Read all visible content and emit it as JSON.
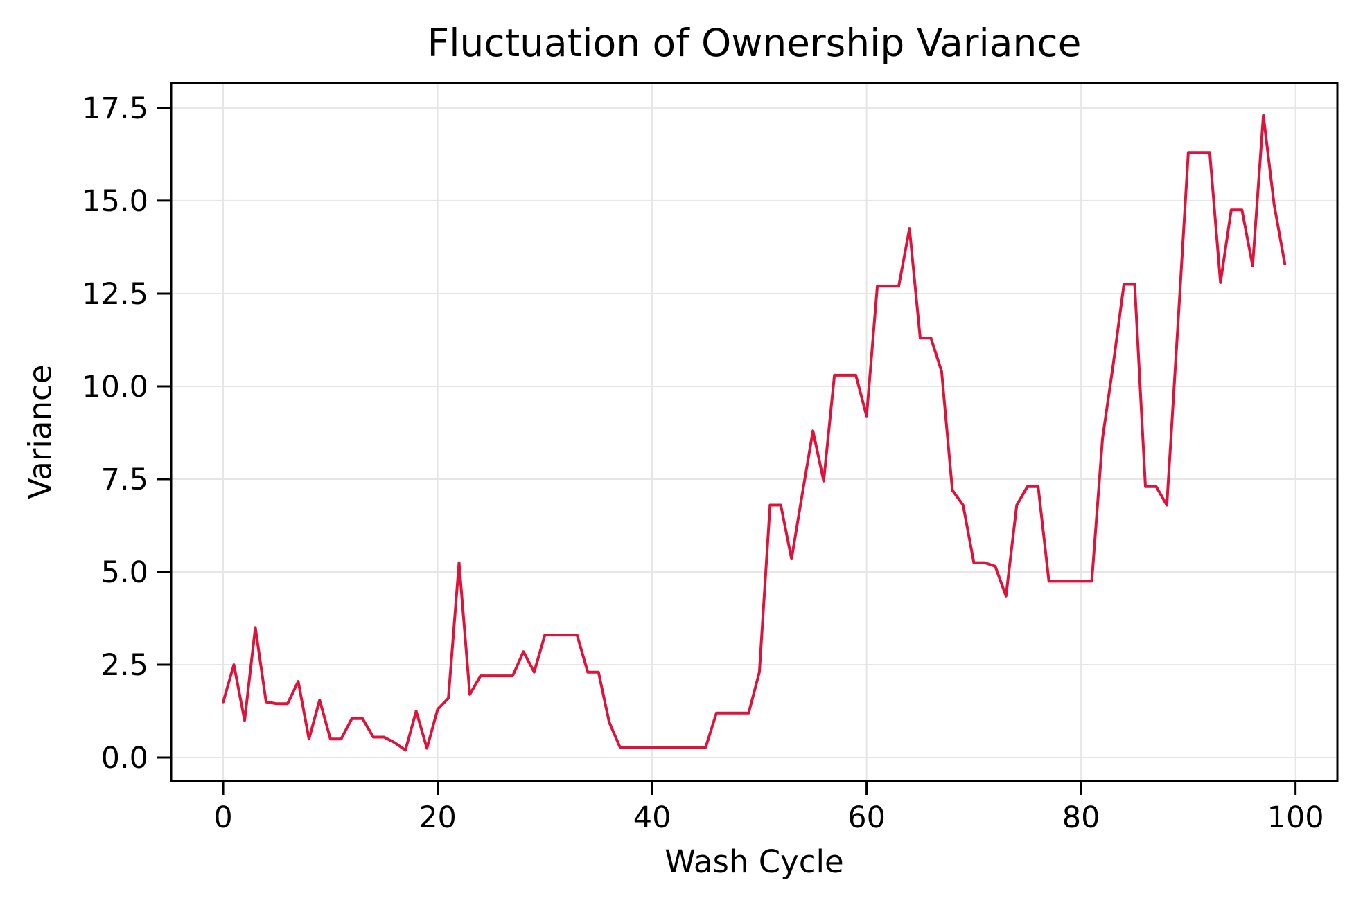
{
  "chart_data": {
    "type": "line",
    "title": "Fluctuation of Ownership Variance",
    "xlabel": "Wash Cycle",
    "ylabel": "Variance",
    "grid": true,
    "legend": false,
    "line_color": "#DC143C",
    "line_width": 4,
    "grid_color": "#e6e6e6",
    "spine_color": "#000000",
    "background": "#ffffff",
    "xlim": [
      -4.85,
      103.9
    ],
    "ylim": [
      -0.634,
      18.17
    ],
    "xticks": [
      0,
      20,
      40,
      60,
      80,
      100
    ],
    "xtick_labels": [
      "0",
      "20",
      "40",
      "60",
      "80",
      "100"
    ],
    "yticks": [
      0.0,
      2.5,
      5.0,
      7.5,
      10.0,
      12.5,
      15.0,
      17.5
    ],
    "ytick_labels": [
      "0.0",
      "2.5",
      "5.0",
      "7.5",
      "10.0",
      "12.5",
      "15.0",
      "17.5"
    ],
    "x": [
      0,
      1,
      2,
      3,
      4,
      5,
      6,
      7,
      8,
      9,
      10,
      11,
      12,
      13,
      14,
      15,
      16,
      17,
      18,
      19,
      20,
      21,
      22,
      23,
      24,
      25,
      26,
      27,
      28,
      29,
      30,
      31,
      32,
      33,
      34,
      35,
      36,
      37,
      38,
      39,
      40,
      41,
      42,
      43,
      44,
      45,
      46,
      47,
      48,
      49,
      50,
      51,
      52,
      53,
      54,
      55,
      56,
      57,
      58,
      59,
      60,
      61,
      62,
      63,
      64,
      65,
      66,
      67,
      68,
      69,
      70,
      71,
      72,
      73,
      74,
      75,
      76,
      77,
      78,
      79,
      80,
      81,
      82,
      83,
      84,
      85,
      86,
      87,
      88,
      89,
      90,
      91,
      92,
      93,
      94,
      95,
      96,
      97,
      98,
      99
    ],
    "y": [
      1.5,
      2.5,
      1.0,
      3.5,
      1.5,
      1.45,
      1.45,
      2.05,
      0.5,
      1.55,
      0.5,
      0.5,
      1.05,
      1.05,
      0.55,
      0.55,
      0.4,
      0.2,
      1.25,
      0.25,
      1.3,
      1.6,
      5.25,
      1.7,
      2.2,
      2.2,
      2.2,
      2.2,
      2.85,
      2.3,
      3.3,
      3.3,
      3.3,
      3.3,
      2.3,
      2.3,
      0.95,
      0.28,
      0.28,
      0.28,
      0.28,
      0.28,
      0.28,
      0.28,
      0.28,
      0.28,
      1.2,
      1.2,
      1.2,
      1.2,
      2.3,
      6.8,
      6.8,
      5.35,
      7.1,
      8.8,
      7.45,
      10.3,
      10.3,
      10.3,
      9.2,
      12.7,
      12.7,
      12.7,
      14.25,
      11.3,
      11.3,
      10.4,
      7.2,
      6.8,
      5.25,
      5.25,
      5.15,
      4.35,
      6.8,
      7.3,
      7.3,
      4.75,
      4.75,
      4.75,
      4.75,
      4.75,
      8.6,
      10.6,
      12.75,
      12.75,
      7.3,
      7.3,
      6.8,
      11.5,
      16.3,
      16.3,
      16.3,
      12.8,
      14.75,
      14.75,
      13.25,
      17.3,
      14.9,
      13.3
    ]
  }
}
